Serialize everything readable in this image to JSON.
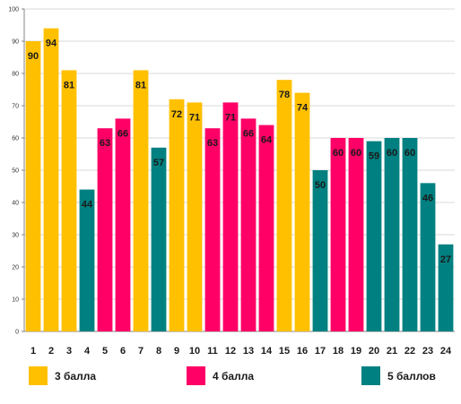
{
  "colors": {
    "grid": "#d9d9d9",
    "axis": "#868686"
  },
  "chart_data": {
    "type": "bar",
    "title": "",
    "xlabel": "",
    "ylabel": "",
    "ylim": [
      0,
      100
    ],
    "yticks": [
      0,
      10,
      20,
      30,
      40,
      50,
      60,
      70,
      80,
      90,
      100
    ],
    "grid": true,
    "legend_position": "bottom",
    "categories": [
      "1",
      "2",
      "3",
      "4",
      "5",
      "6",
      "7",
      "8",
      "9",
      "10",
      "11",
      "12",
      "13",
      "14",
      "15",
      "16",
      "17",
      "18",
      "19",
      "20",
      "21",
      "22",
      "23",
      "24"
    ],
    "values": [
      90,
      94,
      81,
      44,
      63,
      66,
      81,
      57,
      72,
      71,
      63,
      71,
      66,
      64,
      78,
      74,
      50,
      60,
      60,
      59,
      60,
      60,
      46,
      27
    ],
    "groups": [
      "g3",
      "g3",
      "g3",
      "g5",
      "g4",
      "g4",
      "g3",
      "g5",
      "g3",
      "g3",
      "g4",
      "g4",
      "g4",
      "g4",
      "g3",
      "g3",
      "g5",
      "g4",
      "g4",
      "g5",
      "g5",
      "g5",
      "g5",
      "g5"
    ],
    "series": [
      {
        "key": "g3",
        "name": "3 балла",
        "color": "#ffc000"
      },
      {
        "key": "g4",
        "name": "4 балла",
        "color": "#ff0066"
      },
      {
        "key": "g5",
        "name": "5 баллов",
        "color": "#008080"
      }
    ]
  }
}
